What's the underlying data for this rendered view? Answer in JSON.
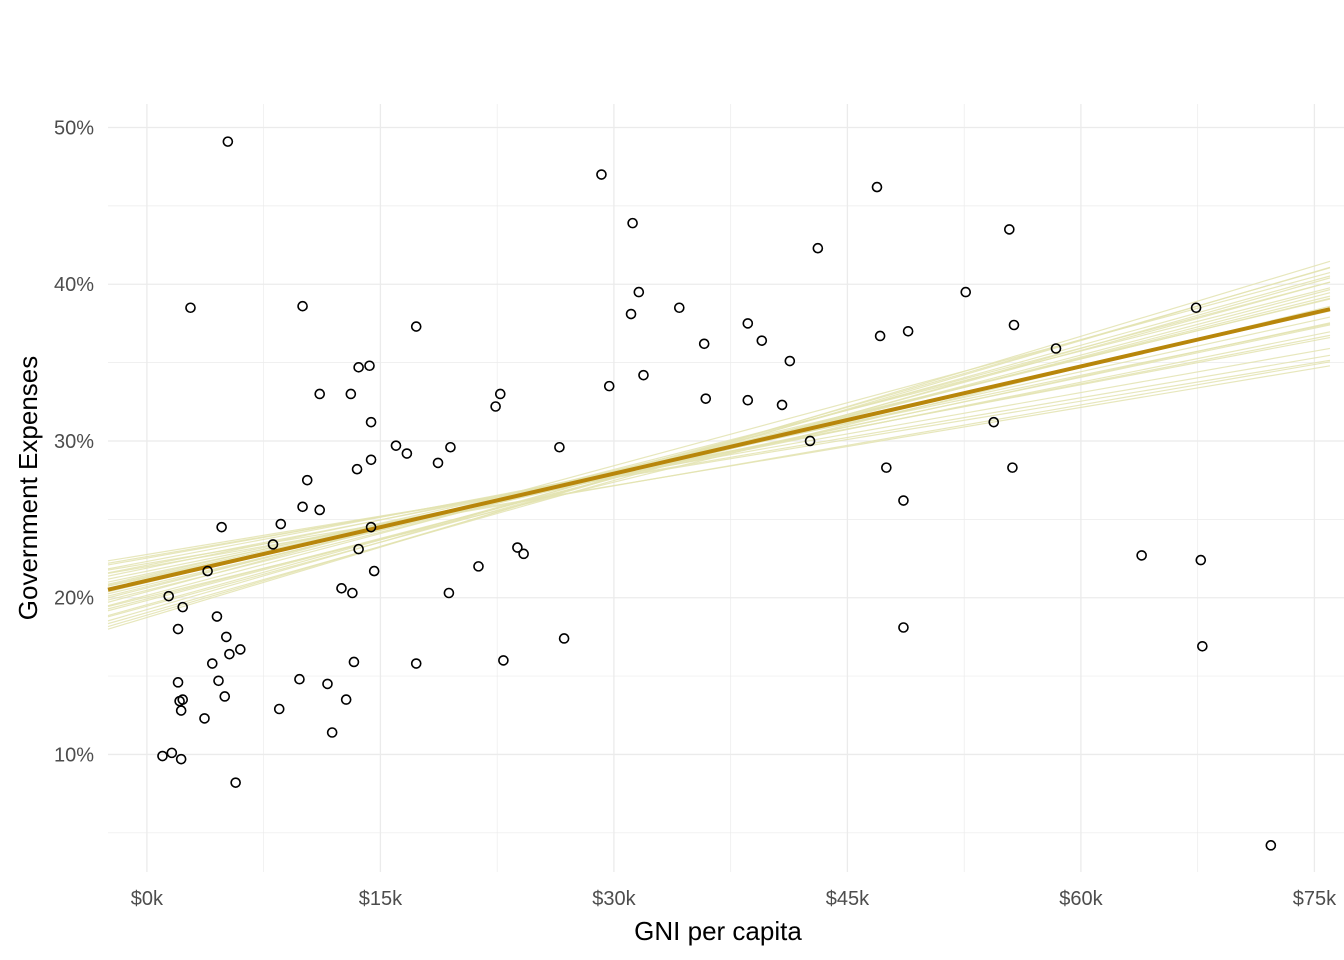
{
  "chart_data": {
    "type": "scatter",
    "xlabel": "GNI per capita",
    "ylabel": "Government Expenses",
    "xlim": [
      -2500,
      76000
    ],
    "ylim": [
      0.025,
      0.515
    ],
    "x_ticks": [
      {
        "value": 0,
        "label": "$0k"
      },
      {
        "value": 15000,
        "label": "$15k"
      },
      {
        "value": 30000,
        "label": "$30k"
      },
      {
        "value": 45000,
        "label": "$45k"
      },
      {
        "value": 60000,
        "label": "$60k"
      },
      {
        "value": 75000,
        "label": "$75k"
      }
    ],
    "y_ticks": [
      {
        "value": 0.1,
        "label": "10%"
      },
      {
        "value": 0.2,
        "label": "20%"
      },
      {
        "value": 0.3,
        "label": "30%"
      },
      {
        "value": 0.4,
        "label": "40%"
      },
      {
        "value": 0.5,
        "label": "50%"
      }
    ],
    "grid": true,
    "colors": {
      "points": "#000000",
      "fit_line": "#b8860b",
      "sample_lines": "#e3e3b0",
      "grid": "#ebebeb"
    },
    "fit_line": {
      "intercept": 0.2108,
      "slope": 2.28e-06
    },
    "sample_lines": [
      {
        "intercept": 0.2142,
        "slope": 2.22e-06
      },
      {
        "intercept": 0.1955,
        "slope": 2.76e-06
      },
      {
        "intercept": 0.2218,
        "slope": 1.66e-06
      },
      {
        "intercept": 0.2038,
        "slope": 2.68e-06
      },
      {
        "intercept": 0.2276,
        "slope": 1.63e-06
      },
      {
        "intercept": 0.1874,
        "slope": 2.99e-06
      },
      {
        "intercept": 0.2189,
        "slope": 2.05e-06
      },
      {
        "intercept": 0.2005,
        "slope": 2.44e-06
      },
      {
        "intercept": 0.2253,
        "slope": 1.76e-06
      },
      {
        "intercept": 0.1924,
        "slope": 2.87e-06
      },
      {
        "intercept": 0.2097,
        "slope": 2.38e-06
      },
      {
        "intercept": 0.2169,
        "slope": 2.01e-06
      },
      {
        "intercept": 0.1982,
        "slope": 2.61e-06
      },
      {
        "intercept": 0.2231,
        "slope": 1.88e-06
      },
      {
        "intercept": 0.2062,
        "slope": 2.52e-06
      },
      {
        "intercept": 0.1905,
        "slope": 2.81e-06
      },
      {
        "intercept": 0.2127,
        "slope": 2.14e-06
      },
      {
        "intercept": 0.2198,
        "slope": 1.72e-06
      },
      {
        "intercept": 0.2015,
        "slope": 2.63e-06
      },
      {
        "intercept": 0.2083,
        "slope": 2.31e-06
      },
      {
        "intercept": 0.2262,
        "slope": 1.69e-06
      },
      {
        "intercept": 0.1946,
        "slope": 2.72e-06
      },
      {
        "intercept": 0.2152,
        "slope": 2.09e-06
      },
      {
        "intercept": 0.2047,
        "slope": 2.47e-06
      },
      {
        "intercept": 0.2118,
        "slope": 2.27e-06
      },
      {
        "intercept": 0.1889,
        "slope": 2.92e-06
      },
      {
        "intercept": 0.2207,
        "slope": 1.93e-06
      },
      {
        "intercept": 0.1993,
        "slope": 2.57e-06
      },
      {
        "intercept": 0.2134,
        "slope": 2.18e-06
      },
      {
        "intercept": 0.2071,
        "slope": 2.42e-06
      }
    ],
    "points": [
      {
        "x": 1000,
        "y": 0.099
      },
      {
        "x": 1400,
        "y": 0.201
      },
      {
        "x": 1600,
        "y": 0.101
      },
      {
        "x": 2000,
        "y": 0.146
      },
      {
        "x": 2000,
        "y": 0.18
      },
      {
        "x": 2100,
        "y": 0.134
      },
      {
        "x": 2200,
        "y": 0.097
      },
      {
        "x": 2200,
        "y": 0.128
      },
      {
        "x": 2300,
        "y": 0.194
      },
      {
        "x": 2300,
        "y": 0.135
      },
      {
        "x": 2800,
        "y": 0.385
      },
      {
        "x": 3700,
        "y": 0.123
      },
      {
        "x": 3900,
        "y": 0.217
      },
      {
        "x": 4200,
        "y": 0.158
      },
      {
        "x": 4500,
        "y": 0.188
      },
      {
        "x": 4600,
        "y": 0.147
      },
      {
        "x": 4800,
        "y": 0.245
      },
      {
        "x": 5000,
        "y": 0.137
      },
      {
        "x": 5100,
        "y": 0.175
      },
      {
        "x": 5200,
        "y": 0.491
      },
      {
        "x": 5300,
        "y": 0.164
      },
      {
        "x": 5700,
        "y": 0.082
      },
      {
        "x": 6000,
        "y": 0.167
      },
      {
        "x": 8100,
        "y": 0.234
      },
      {
        "x": 8500,
        "y": 0.129
      },
      {
        "x": 8600,
        "y": 0.247
      },
      {
        "x": 9800,
        "y": 0.148
      },
      {
        "x": 10000,
        "y": 0.386
      },
      {
        "x": 10000,
        "y": 0.258
      },
      {
        "x": 10300,
        "y": 0.275
      },
      {
        "x": 11100,
        "y": 0.256
      },
      {
        "x": 11100,
        "y": 0.33
      },
      {
        "x": 11600,
        "y": 0.145
      },
      {
        "x": 11900,
        "y": 0.114
      },
      {
        "x": 12500,
        "y": 0.206
      },
      {
        "x": 12800,
        "y": 0.135
      },
      {
        "x": 13100,
        "y": 0.33
      },
      {
        "x": 13200,
        "y": 0.203
      },
      {
        "x": 13300,
        "y": 0.159
      },
      {
        "x": 13500,
        "y": 0.282
      },
      {
        "x": 13600,
        "y": 0.347
      },
      {
        "x": 13600,
        "y": 0.231
      },
      {
        "x": 14300,
        "y": 0.348
      },
      {
        "x": 14400,
        "y": 0.312
      },
      {
        "x": 14400,
        "y": 0.288
      },
      {
        "x": 14400,
        "y": 0.245
      },
      {
        "x": 14600,
        "y": 0.217
      },
      {
        "x": 16000,
        "y": 0.297
      },
      {
        "x": 16700,
        "y": 0.292
      },
      {
        "x": 17300,
        "y": 0.373
      },
      {
        "x": 17300,
        "y": 0.158
      },
      {
        "x": 18700,
        "y": 0.286
      },
      {
        "x": 19400,
        "y": 0.203
      },
      {
        "x": 19500,
        "y": 0.296
      },
      {
        "x": 21300,
        "y": 0.22
      },
      {
        "x": 22400,
        "y": 0.322
      },
      {
        "x": 22700,
        "y": 0.33
      },
      {
        "x": 22900,
        "y": 0.16
      },
      {
        "x": 23800,
        "y": 0.232
      },
      {
        "x": 24200,
        "y": 0.228
      },
      {
        "x": 26500,
        "y": 0.296
      },
      {
        "x": 26800,
        "y": 0.174
      },
      {
        "x": 29200,
        "y": 0.47
      },
      {
        "x": 29700,
        "y": 0.335
      },
      {
        "x": 31100,
        "y": 0.381
      },
      {
        "x": 31200,
        "y": 0.439
      },
      {
        "x": 31600,
        "y": 0.395
      },
      {
        "x": 31900,
        "y": 0.342
      },
      {
        "x": 34200,
        "y": 0.385
      },
      {
        "x": 35800,
        "y": 0.362
      },
      {
        "x": 35900,
        "y": 0.327
      },
      {
        "x": 38600,
        "y": 0.375
      },
      {
        "x": 38600,
        "y": 0.326
      },
      {
        "x": 39500,
        "y": 0.364
      },
      {
        "x": 40800,
        "y": 0.323
      },
      {
        "x": 41300,
        "y": 0.351
      },
      {
        "x": 42600,
        "y": 0.3
      },
      {
        "x": 43100,
        "y": 0.423
      },
      {
        "x": 46900,
        "y": 0.462
      },
      {
        "x": 47100,
        "y": 0.367
      },
      {
        "x": 47500,
        "y": 0.283
      },
      {
        "x": 48600,
        "y": 0.262
      },
      {
        "x": 48600,
        "y": 0.181
      },
      {
        "x": 48900,
        "y": 0.37
      },
      {
        "x": 52600,
        "y": 0.395
      },
      {
        "x": 54400,
        "y": 0.312
      },
      {
        "x": 55400,
        "y": 0.435
      },
      {
        "x": 55600,
        "y": 0.283
      },
      {
        "x": 55700,
        "y": 0.374
      },
      {
        "x": 58400,
        "y": 0.359
      },
      {
        "x": 63900,
        "y": 0.227
      },
      {
        "x": 67400,
        "y": 0.385
      },
      {
        "x": 67700,
        "y": 0.224
      },
      {
        "x": 67800,
        "y": 0.169
      },
      {
        "x": 72200,
        "y": 0.042
      }
    ]
  }
}
